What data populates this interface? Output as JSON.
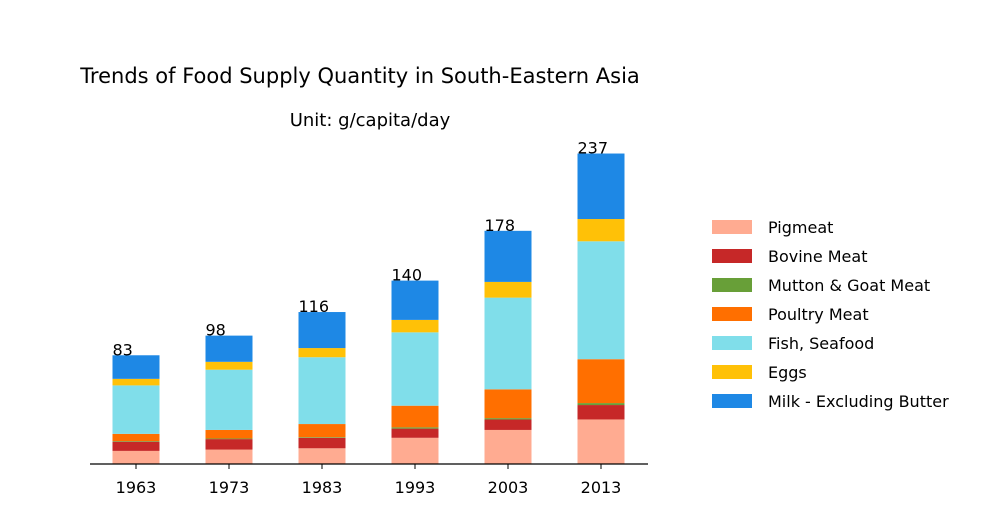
{
  "chart_data": {
    "type": "bar",
    "stacked": true,
    "title": "Trends of Food Supply Quantity in South-Eastern Asia",
    "subtitle": "Unit: g/capita/day",
    "xlabel": "",
    "ylabel": "",
    "ylim": [
      0,
      250
    ],
    "grid": false,
    "legend_position": "right",
    "categories": [
      "1963",
      "1973",
      "1983",
      "1993",
      "2003",
      "2013"
    ],
    "totals": [
      83,
      98,
      116,
      140,
      178,
      237
    ],
    "series": [
      {
        "name": "Pigmeat",
        "color": "#FFAB91",
        "values": [
          10,
          11,
          12,
          20,
          26,
          34
        ]
      },
      {
        "name": "Bovine Meat",
        "color": "#C62828",
        "values": [
          7,
          8,
          8,
          7,
          8,
          11
        ]
      },
      {
        "name": "Mutton & Goat Meat",
        "color": "#689F38",
        "values": [
          0.5,
          0.5,
          0.5,
          1,
          1,
          1.5
        ]
      },
      {
        "name": "Poultry Meat",
        "color": "#FF6F00",
        "values": [
          5.5,
          6.5,
          10,
          16.5,
          22,
          33.5
        ]
      },
      {
        "name": "Fish, Seafood",
        "color": "#80DEEA",
        "values": [
          37,
          46,
          51,
          56,
          70,
          90
        ]
      },
      {
        "name": "Eggs",
        "color": "#FFC107",
        "values": [
          5,
          6,
          7,
          9.5,
          12,
          17
        ]
      },
      {
        "name": "Milk - Excluding Butter",
        "color": "#1E88E5",
        "values": [
          18,
          20,
          27.5,
          30,
          39,
          50
        ]
      }
    ]
  }
}
